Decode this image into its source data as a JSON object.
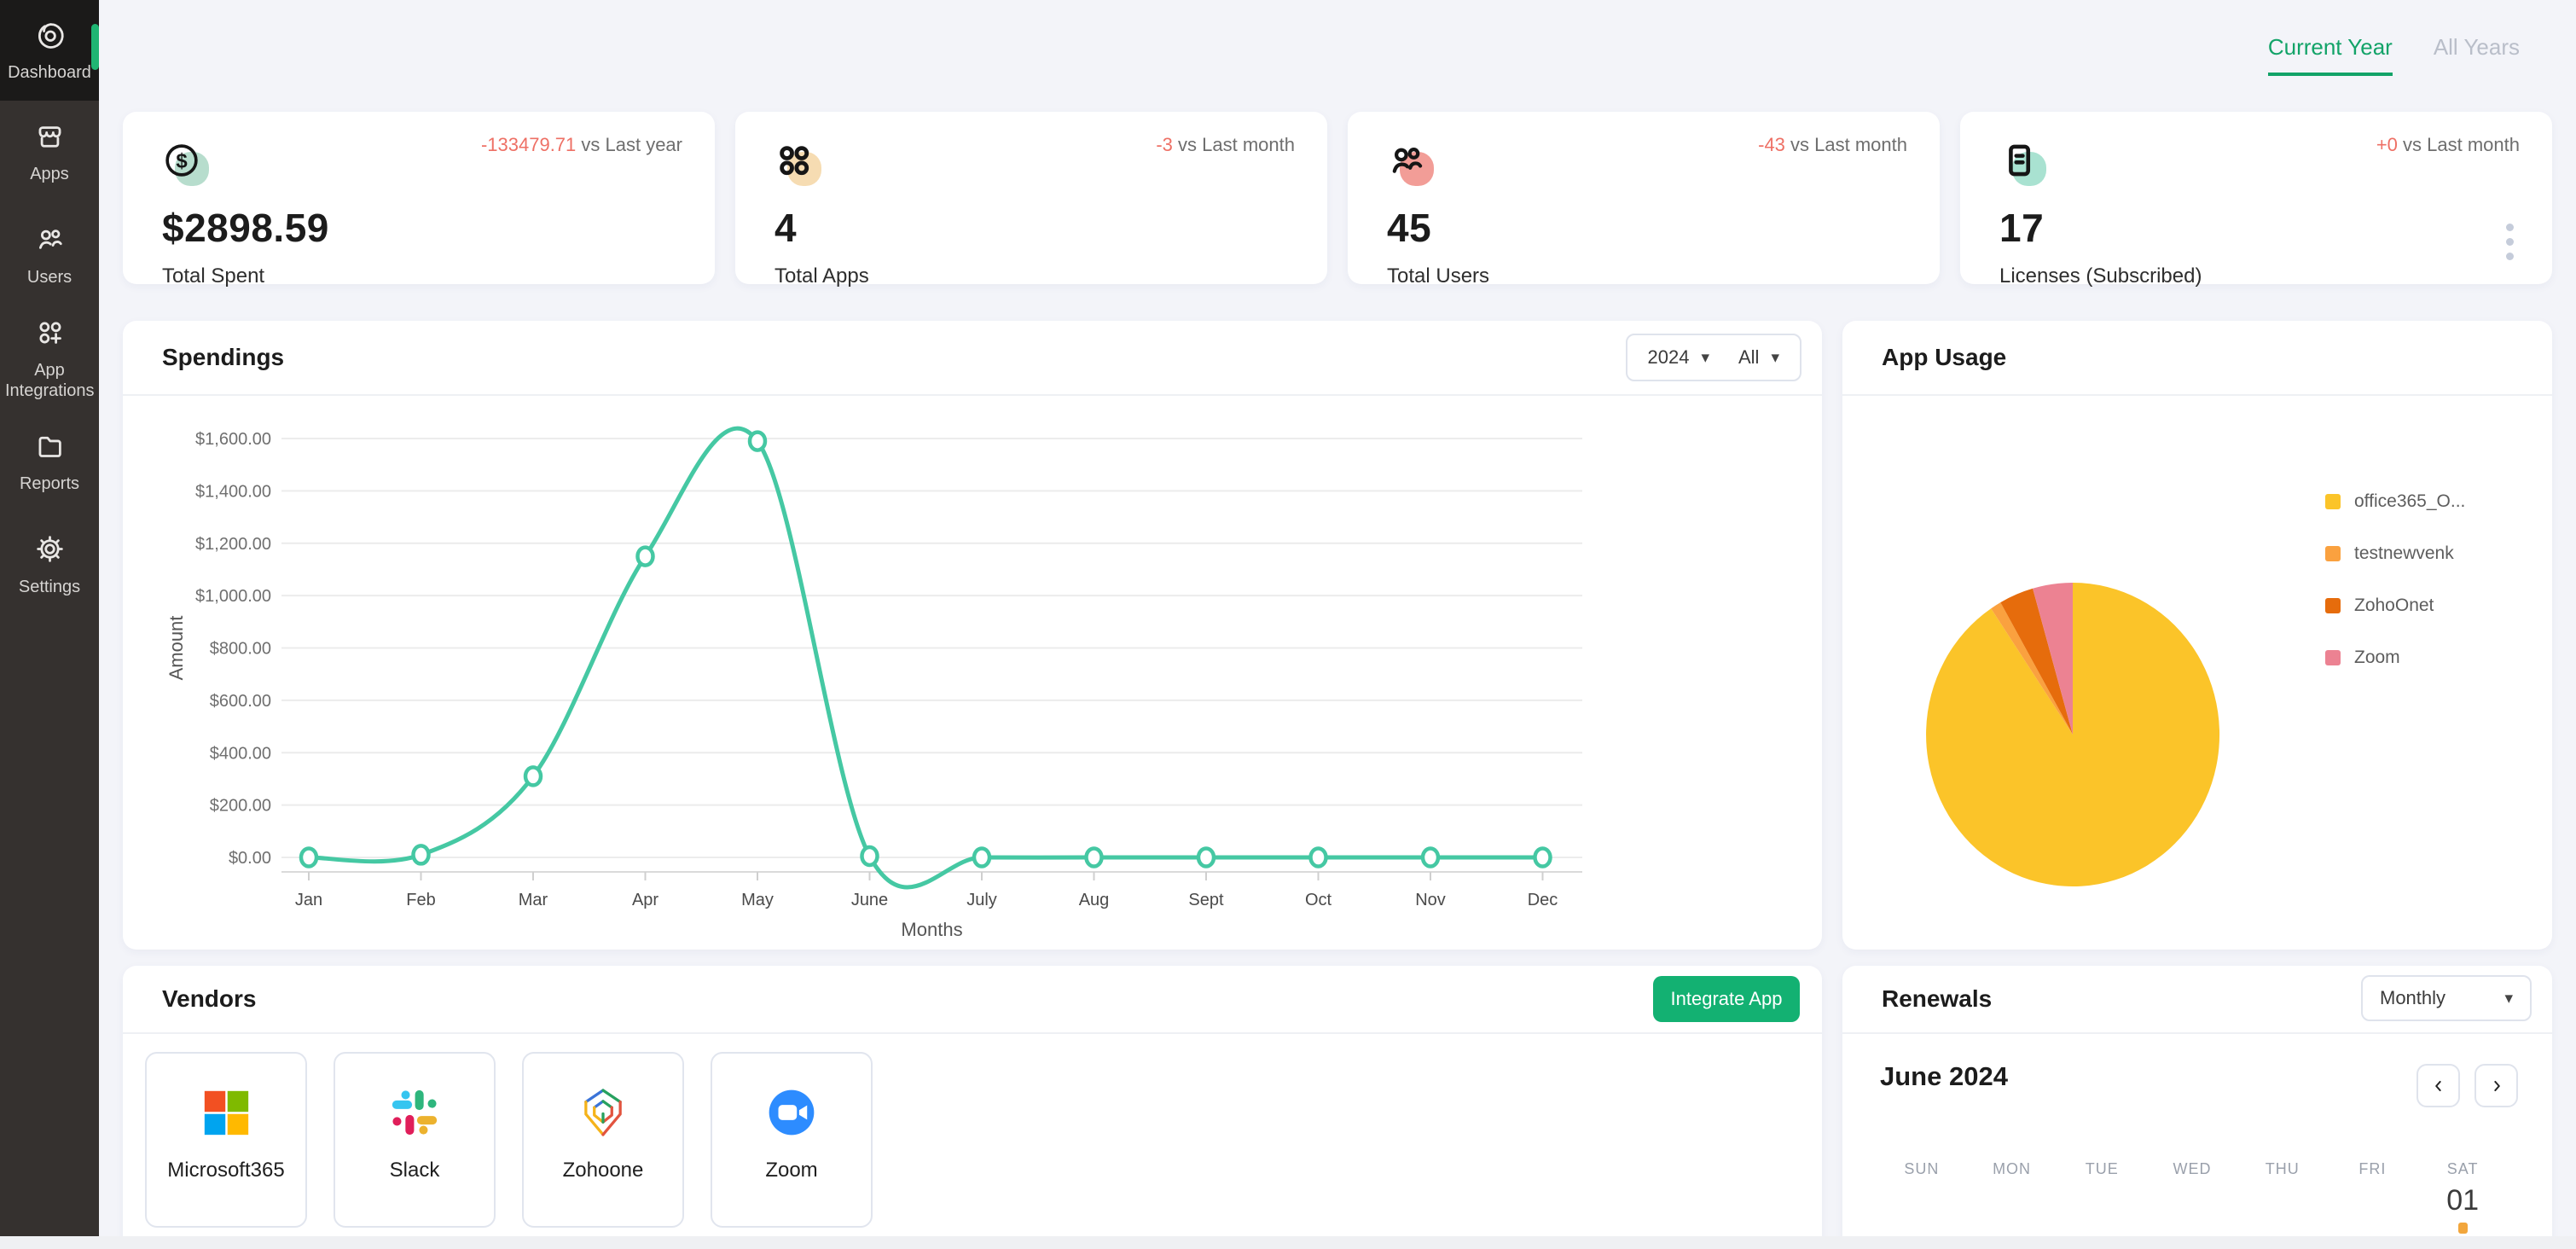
{
  "colors": {
    "accent_green": "#12a368",
    "button_green": "#13b172",
    "delta_red": "#ee7065",
    "line_teal": "#45c8a3",
    "page_bg": "#f3f4f9",
    "sidebar_bg": "#35312f"
  },
  "sidebar": {
    "items": [
      {
        "label": "Dashboard",
        "icon": "dashboard-icon",
        "active": true
      },
      {
        "label": "Apps",
        "icon": "apps-icon",
        "active": false
      },
      {
        "label": "Users",
        "icon": "users-icon",
        "active": false
      },
      {
        "label": "App Integrations",
        "icon": "app-integrations-icon",
        "active": false
      },
      {
        "label": "Reports",
        "icon": "reports-icon",
        "active": false
      },
      {
        "label": "Settings",
        "icon": "settings-icon",
        "active": false
      }
    ]
  },
  "header": {
    "tabs": [
      {
        "label": "Current Year",
        "active": true
      },
      {
        "label": "All Years",
        "active": false
      }
    ]
  },
  "stats": [
    {
      "icon": "dollar-icon",
      "blob": "#b7ddcd",
      "delta": "-133479.71",
      "delta_suffix": " vs Last year",
      "value": "$2898.59",
      "label": "Total Spent"
    },
    {
      "icon": "apps-grid-icon",
      "blob": "#f6dcb2",
      "delta": "-3",
      "delta_suffix": " vs Last month",
      "value": "4",
      "label": "Total Apps"
    },
    {
      "icon": "total-users-icon",
      "blob": "#f29d97",
      "delta": "-43",
      "delta_suffix": " vs Last month",
      "value": "45",
      "label": "Total Users"
    },
    {
      "icon": "licenses-icon",
      "blob": "#a9e2d1",
      "delta": "+0",
      "delta_suffix": " vs Last month",
      "value": "17",
      "label": "Licenses (Subscribed)"
    }
  ],
  "spendings": {
    "title": "Spendings",
    "year_filter": "2024",
    "app_filter": "All",
    "chart_data": {
      "type": "line",
      "x": [
        "Jan",
        "Feb",
        "Mar",
        "Apr",
        "May",
        "June",
        "July",
        "Aug",
        "Sept",
        "Oct",
        "Nov",
        "Dec"
      ],
      "values": [
        0,
        10,
        310,
        1150,
        1590,
        5,
        0,
        0,
        0,
        0,
        0,
        0
      ],
      "xlabel": "Months",
      "ylabel": "Amount",
      "ylim": [
        0,
        1600
      ],
      "ytick_step": 200,
      "ytick_labels": [
        "$0.00",
        "$200.00",
        "$400.00",
        "$600.00",
        "$800.00",
        "$1,000.00",
        "$1,200.00",
        "$1,400.00",
        "$1,600.00"
      ],
      "grid": true,
      "line_color": "#45c8a3"
    }
  },
  "app_usage": {
    "title": "App Usage",
    "chart_data": {
      "type": "pie",
      "labels": [
        "office365_O...",
        "testnewvenk",
        "ZohoOnet",
        "Zoom"
      ],
      "values": [
        90.6,
        1.2,
        3.8,
        4.4
      ],
      "colors": [
        "#fbc429",
        "#faa13f",
        "#e66c0c",
        "#ec8292"
      ],
      "legend_position": "right"
    }
  },
  "vendors": {
    "title": "Vendors",
    "button_label": "Integrate App",
    "items": [
      {
        "name": "Microsoft365",
        "icon": "microsoft-logo"
      },
      {
        "name": "Slack",
        "icon": "slack-logo"
      },
      {
        "name": "Zohoone",
        "icon": "zohoone-logo"
      },
      {
        "name": "Zoom",
        "icon": "zoom-logo"
      }
    ]
  },
  "renewals": {
    "title": "Renewals",
    "period": "Monthly",
    "month_label": "June 2024",
    "day_headers": [
      "SUN",
      "MON",
      "TUE",
      "WED",
      "THU",
      "FRI",
      "SAT"
    ],
    "visible_date": {
      "day": "01",
      "column": 6,
      "marker_color": "#f2a63c"
    }
  }
}
